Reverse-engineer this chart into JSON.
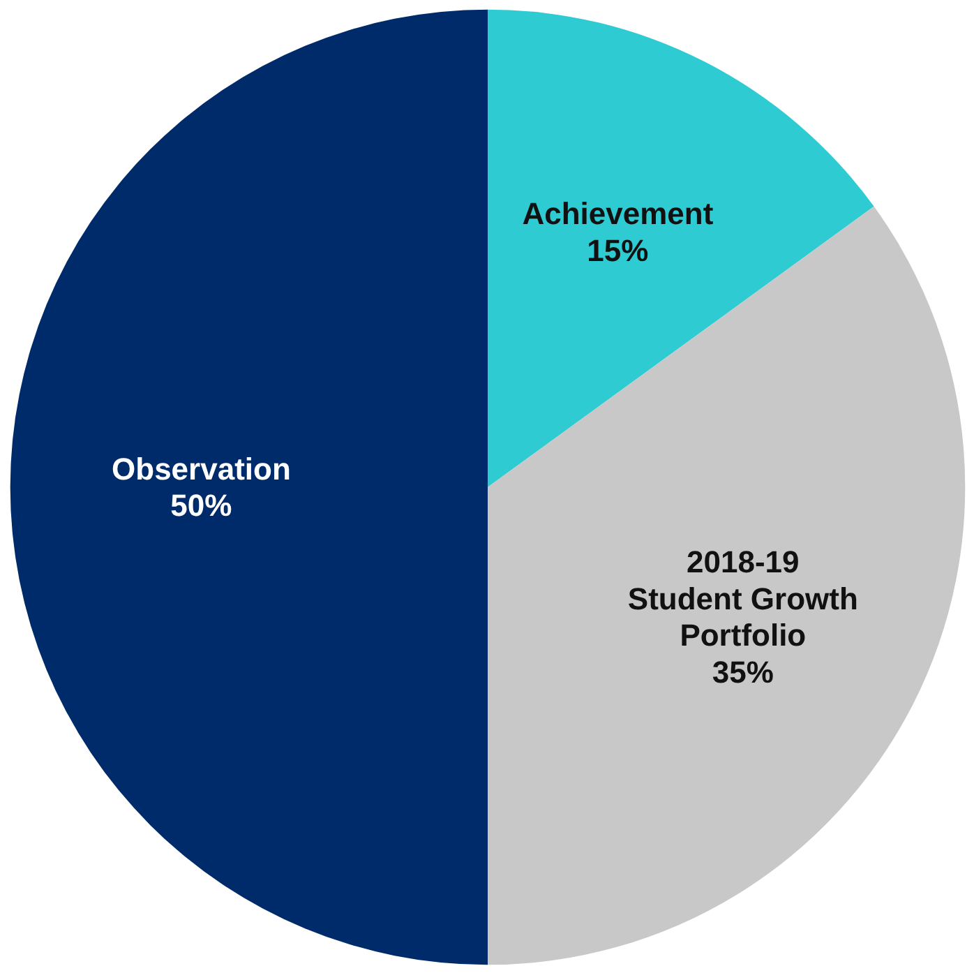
{
  "chart_data": {
    "type": "pie",
    "categories": [
      "Achievement",
      "2018-19 Student Growth Portfolio",
      "Observation"
    ],
    "values": [
      15,
      35,
      50
    ],
    "value_labels": [
      "15%",
      "35%",
      "50%"
    ],
    "colors": [
      "#2ecbd3",
      "#c8c8c8",
      "#002b6b"
    ]
  }
}
